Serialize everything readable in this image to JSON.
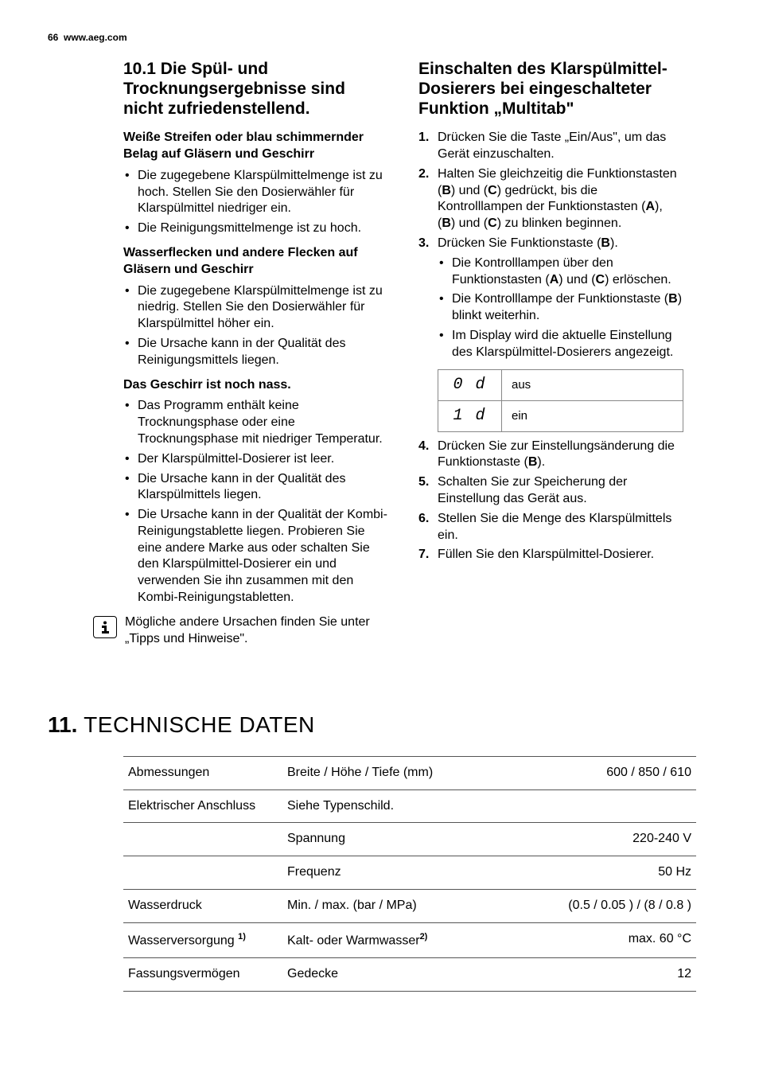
{
  "header": {
    "page_num": "66",
    "url": "www.aeg.com"
  },
  "left": {
    "heading_num": "10.1",
    "heading_text": " Die Spül- und Trocknungsergebnisse sind nicht zufriedenstellend.",
    "block1_title": "Weiße Streifen oder blau schimmernder Belag auf Gläsern und Geschirr",
    "block1_items": [
      "Die zugegebene Klarspülmittelmenge ist zu hoch. Stellen Sie den Dosierwähler für Klarspülmittel niedriger ein.",
      "Die Reinigungsmittelmenge ist zu hoch."
    ],
    "block2_title": "Wasserflecken und andere Flecken auf Gläsern und Geschirr",
    "block2_items": [
      "Die zugegebene Klarspülmittelmenge ist zu niedrig. Stellen Sie den Dosierwähler für Klarspülmittel höher ein.",
      "Die Ursache kann in der Qualität des Reinigungsmittels liegen."
    ],
    "block3_title": "Das Geschirr ist noch nass.",
    "block3_items": [
      "Das Programm enthält keine Trocknungsphase oder eine Trocknungsphase mit niedriger Temperatur.",
      "Der Klarspülmittel-Dosierer ist leer.",
      "Die Ursache kann in der Qualität des Klarspülmittels liegen.",
      "Die Ursache kann in der Qualität der Kombi-Reinigungstablette liegen. Probieren Sie eine andere Marke aus oder schalten Sie den Klarspülmittel-Dosierer ein und verwenden Sie ihn zusammen mit den Kombi-Reinigungstabletten."
    ],
    "info_text": "Mögliche andere Ursachen finden Sie unter „Tipps und Hinweise\"."
  },
  "right": {
    "heading": "Einschalten des Klarspülmittel-Dosierers bei eingeschalteter Funktion „Multitab\"",
    "step1": "Drücken Sie die Taste „Ein/Aus\", um das Gerät einzuschalten.",
    "step2_a": "Halten Sie gleichzeitig die Funktionstasten (",
    "step2_b": ") und (",
    "step2_c": ") gedrückt, bis die Kontrolllampen der Funktionstasten (",
    "step2_d": "), (",
    "step2_e": ") und (",
    "step2_f": ") zu blinken beginnen.",
    "step3_a": "Drücken Sie Funktionstaste (",
    "step3_b": ").",
    "step3_sub1_a": "Die Kontrolllampen über den Funktionstasten (",
    "step3_sub1_b": ") und (",
    "step3_sub1_c": ") erlöschen.",
    "step3_sub2_a": "Die Kontrolllampe der Funktionstaste (",
    "step3_sub2_b": ") blinkt weiterhin.",
    "step3_sub3": "Im Display wird die aktuelle Einstellung des Klarspülmittel-Dosierers angezeigt.",
    "table": {
      "rows": [
        {
          "seg": "0 d",
          "label": "aus"
        },
        {
          "seg": "1 d",
          "label": "ein"
        }
      ]
    },
    "step4_a": "Drücken Sie zur Einstellungsänderung die Funktionstaste (",
    "step4_b": ").",
    "step5": "Schalten Sie zur Speicherung der Einstellung das Gerät aus.",
    "step6": "Stellen Sie die Menge des Klarspülmittels ein.",
    "step7": "Füllen Sie den Klarspülmittel-Dosierer.",
    "letters": {
      "A": "A",
      "B": "B",
      "C": "C"
    }
  },
  "section2": {
    "num": "11.",
    "title": " TECHNISCHE DATEN",
    "rows": [
      {
        "c1": "Abmessungen",
        "c2": "Breite / Höhe / Tiefe (mm)",
        "c3": "600 / 850 / 610"
      },
      {
        "c1": "Elektrischer Anschluss",
        "c2": "Siehe Typenschild.",
        "c3": ""
      },
      {
        "c1": "",
        "c2": "Spannung",
        "c3": "220-240 V"
      },
      {
        "c1": "",
        "c2": "Frequenz",
        "c3": "50 Hz"
      },
      {
        "c1": "Wasserdruck",
        "c2": "Min. / max. (bar / MPa)",
        "c3": "(0.5 / 0.05 ) / (8 / 0.8 )"
      },
      {
        "c1_html": "Wasserversorgung <sup>1)</sup>",
        "c2_html": "Kalt- oder Warmwasser<sup>2)</sup>",
        "c3": "max. 60 °C"
      },
      {
        "c1": "Fassungsvermögen",
        "c2": "Gedecke",
        "c3": "12"
      }
    ]
  }
}
